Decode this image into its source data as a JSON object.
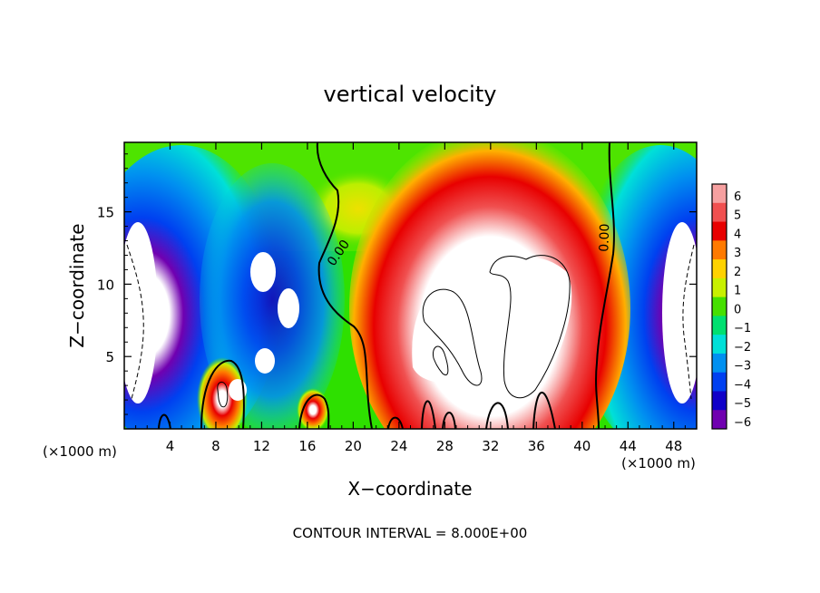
{
  "chart_data": {
    "type": "heatmap",
    "title": "vertical velocity",
    "xlabel": "X−coordinate",
    "ylabel": "Z−coordinate",
    "x_unit": "(×1000 m)",
    "x_unit_right": "(×1000 m)",
    "footer": "CONTOUR INTERVAL = 8.000E+00",
    "xlim": [
      0,
      50
    ],
    "ylim": [
      0,
      19.8
    ],
    "x_ticks": [
      4,
      8,
      12,
      16,
      20,
      24,
      28,
      32,
      36,
      40,
      44,
      48
    ],
    "y_ticks": [
      5,
      10,
      15
    ],
    "colorbar": {
      "levels": [
        6,
        5,
        4,
        3,
        2,
        1,
        0,
        -1,
        -2,
        -3,
        -4,
        -5,
        -6
      ],
      "labels": [
        "6",
        "5",
        "4",
        "3",
        "2",
        "1",
        "0",
        "−1",
        "−2",
        "−3",
        "−4",
        "−5",
        "−6"
      ],
      "colors": [
        "#f6a0a0",
        "#f05050",
        "#e80000",
        "#ff7a00",
        "#ffd200",
        "#c8f000",
        "#46e000",
        "#00e070",
        "#00e0d8",
        "#0090f0",
        "#0040f0",
        "#1000c8",
        "#7000b0"
      ]
    },
    "contour_labels": [
      {
        "text": "0.00",
        "x": 19,
        "y": 12.0
      },
      {
        "text": "0.00",
        "x": 42.3,
        "y": 13.2
      }
    ],
    "grid": false
  }
}
